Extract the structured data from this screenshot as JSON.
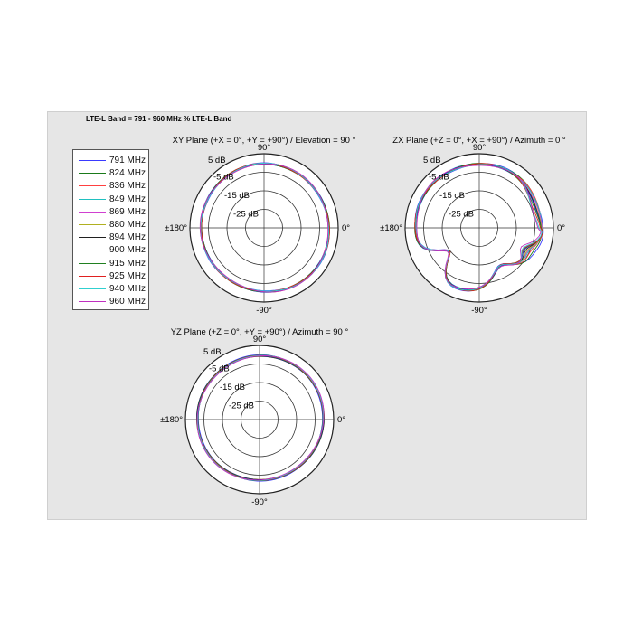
{
  "title": "LTE-L Band = 791 - 960 MHz % LTE-L Band",
  "legend": [
    {
      "label": "791 MHz",
      "color": "#3a3aff"
    },
    {
      "label": "824 MHz",
      "color": "#1a7a1a"
    },
    {
      "label": "836 MHz",
      "color": "#ff4040"
    },
    {
      "label": "849 MHz",
      "color": "#20c0c0"
    },
    {
      "label": "869 MHz",
      "color": "#d040d0"
    },
    {
      "label": "880 MHz",
      "color": "#b0b020"
    },
    {
      "label": "894 MHz",
      "color": "#202020"
    },
    {
      "label": "900 MHz",
      "color": "#2020c0"
    },
    {
      "label": "915 MHz",
      "color": "#208020"
    },
    {
      "label": "925 MHz",
      "color": "#e02020"
    },
    {
      "label": "940 MHz",
      "color": "#30d0d0"
    },
    {
      "label": "960 MHz",
      "color": "#c030c0"
    }
  ],
  "chart_data": [
    {
      "type": "polar",
      "title": "XY Plane (+X = 0°, +Y = +90°) / Elevation = 90 °",
      "ring_labels": [
        "5 dB",
        "-5 dB",
        "-15 dB",
        "-25 dB"
      ],
      "angle_labels": {
        "top": "90°",
        "right": "0°",
        "bottom": "-90°",
        "left": "±180°"
      },
      "rlim": [
        -35,
        5
      ],
      "series_dB": [
        [
          0,
          0,
          0,
          0,
          0,
          0,
          -1,
          -1,
          -1,
          -1,
          -1,
          -1
        ],
        [
          -1,
          -1,
          -1,
          -1,
          -1,
          -1,
          -1,
          -1,
          -1,
          -1,
          -1,
          -1
        ]
      ],
      "shape": "xy"
    },
    {
      "type": "polar",
      "title": "ZX Plane (+Z = 0°, +X = +90°) / Azimuth = 0 °",
      "ring_labels": [
        "5 dB",
        "-5 dB",
        "-15 dB",
        "-25 dB"
      ],
      "angle_labels": {
        "top": "90°",
        "right": "0°",
        "bottom": "-90°",
        "left": "±180°"
      },
      "rlim": [
        -35,
        5
      ],
      "shape": "zx"
    },
    {
      "type": "polar",
      "title": "YZ Plane (+Z = 0°, +Y = +90°) / Azimuth = 90 °",
      "ring_labels": [
        "5 dB",
        "-5 dB",
        "-15 dB",
        "-25 dB"
      ],
      "angle_labels": {
        "top": "90°",
        "right": "0°",
        "bottom": "-90°",
        "left": "±180°"
      },
      "rlim": [
        -35,
        5
      ],
      "shape": "yz"
    }
  ]
}
